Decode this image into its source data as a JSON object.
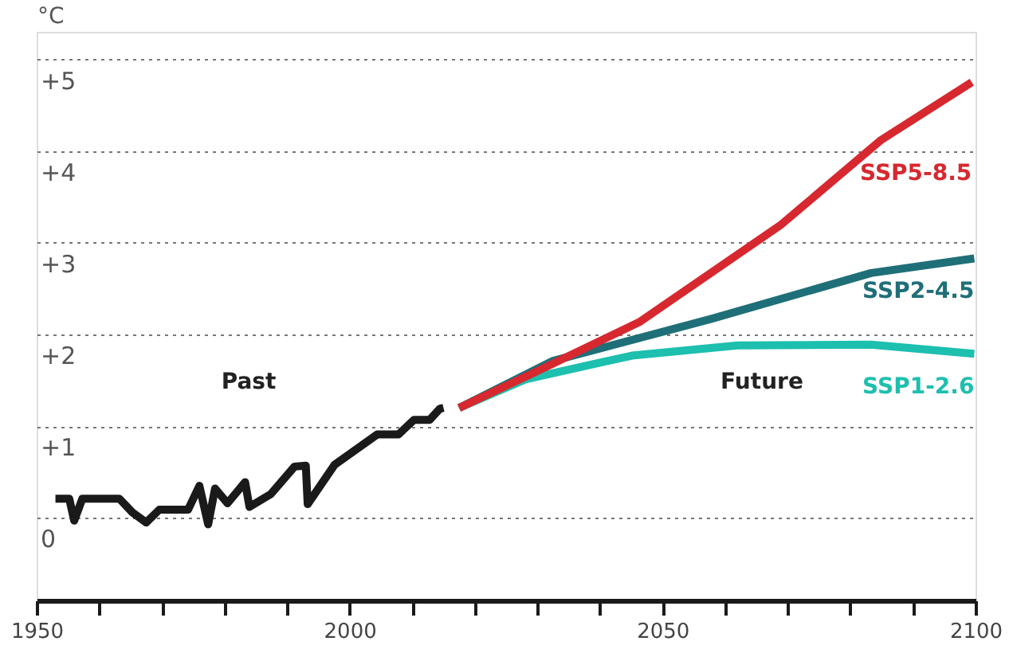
{
  "chart_data": {
    "type": "line",
    "ylabel": "°C",
    "xlim": [
      1950,
      2100
    ],
    "xticks": [
      1950,
      {
        "value": 1960,
        "label": null
      },
      {
        "value": 1970,
        "label": null
      },
      {
        "value": 1980,
        "label": null
      },
      {
        "value": 1990,
        "label": null
      },
      2000,
      {
        "value": 2010,
        "label": null
      },
      {
        "value": 2020,
        "label": null
      },
      {
        "value": 2030,
        "label": null
      },
      {
        "value": 2040,
        "label": null
      },
      2050,
      {
        "value": 2060,
        "label": null
      },
      {
        "value": 2070,
        "label": null
      },
      {
        "value": 2080,
        "label": null
      },
      {
        "value": 2090,
        "label": null
      },
      2100
    ],
    "ylim": [
      -0.9,
      5.3
    ],
    "yticks": [
      {
        "value": 0,
        "label": "0"
      },
      {
        "value": 1,
        "label": "+1"
      },
      {
        "value": 2,
        "label": "+2"
      },
      {
        "value": 3,
        "label": "+3"
      },
      {
        "value": 4,
        "label": "+4"
      },
      {
        "value": 5,
        "label": "+5"
      }
    ],
    "grid": "y",
    "marker": "none",
    "line_style": "solid",
    "annotations": [
      "Past",
      "Future"
    ],
    "series": [
      {
        "color": "#1a1a1a",
        "x": [
          1953,
          1955.2,
          1956,
          1957.3,
          1963.2,
          1965.3,
          1967.5,
          1969.6,
          1974.2,
          1976,
          1977.4,
          1978.5,
          1980.5,
          1983.3,
          1984,
          1987.4,
          1991.2,
          1993,
          1993.3,
          1997.6,
          2004.4,
          2007.8,
          2010.3,
          2012.8,
          2014.4,
          2015
        ],
        "values": [
          0.21,
          0.21,
          -0.03,
          0.21,
          0.21,
          0.06,
          -0.05,
          0.09,
          0.09,
          0.35,
          -0.07,
          0.32,
          0.16,
          0.39,
          0.12,
          0.26,
          0.56,
          0.57,
          0.15,
          0.58,
          0.91,
          0.91,
          1.07,
          1.07,
          1.19,
          1.2
        ]
      },
      {
        "name": "SSP1-2.6",
        "color": "#1dbfae",
        "x": [
          2017.5,
          2028.1,
          2045.1,
          2062,
          2083.3,
          2099.8
        ],
        "values": [
          1.2,
          1.51,
          1.77,
          1.88,
          1.89,
          1.79
        ]
      },
      {
        "name": "SSP2-4.5",
        "color": "#1f6f78",
        "x": [
          2017.5,
          2032.4,
          2057.8,
          2083.3,
          2099.8
        ],
        "values": [
          1.2,
          1.71,
          2.17,
          2.67,
          2.83
        ]
      },
      {
        "name": "SSP5-8.5",
        "color": "#d7282f",
        "x": [
          2017.5,
          2030,
          2046.4,
          2068.8,
          2084.9,
          2099.4
        ],
        "values": [
          1.2,
          1.6,
          2.14,
          3.19,
          4.12,
          4.75
        ]
      }
    ]
  }
}
